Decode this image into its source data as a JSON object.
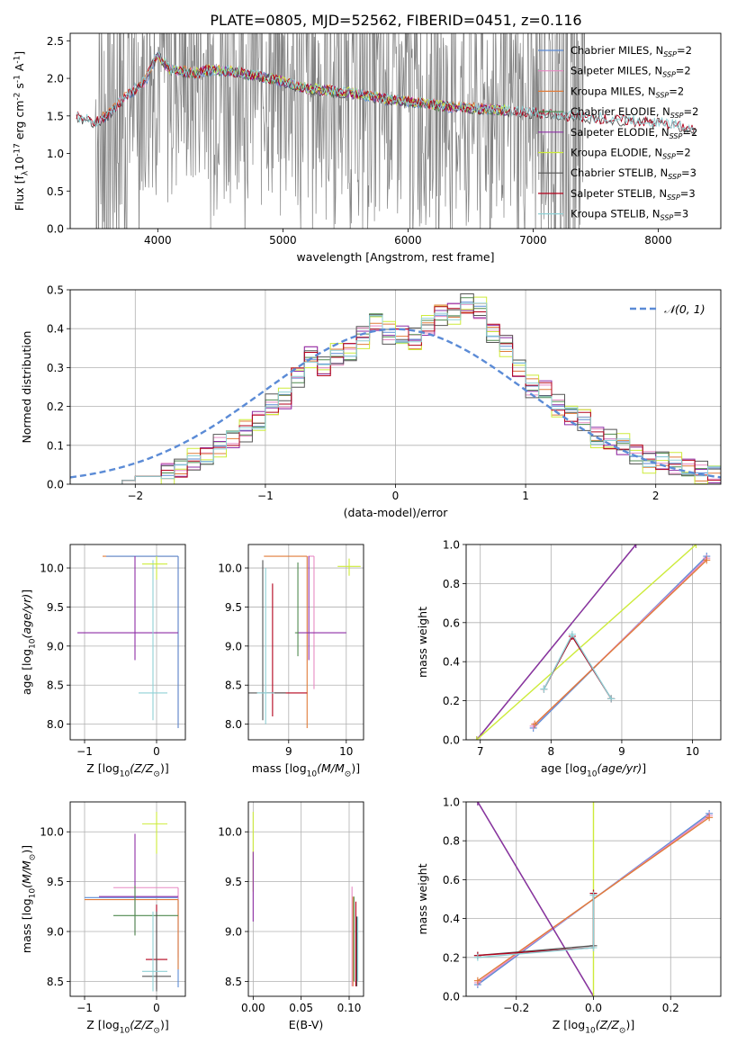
{
  "title": "PLATE=0805, MJD=52562, FIBERID=0451, z=0.116",
  "colors": {
    "Chabrier MILES": "#5b8bd6",
    "Salpeter MILES": "#e78ac3",
    "Kroupa MILES": "#e07b39",
    "Chabrier ELODIE": "#4f8a4f",
    "Salpeter ELODIE": "#8e2ea6",
    "Kroupa ELODIE": "#cdeb3a",
    "Chabrier STELIB": "#555555",
    "Salpeter STELIB": "#b3001b",
    "Kroupa STELIB": "#8fd1d6",
    "data": "#808080",
    "gauss": "#5b8bd6"
  },
  "chart_data": [
    {
      "type": "line",
      "id": "spectrum",
      "xlabel": "wavelength [Angstrom, rest frame]",
      "ylabel": "Flux [f$_\\lambda$$10^{-17}$ erg cm$^{-2}$ s$^{-1}$ A$^{-1}$]",
      "xlim": [
        3300,
        8500
      ],
      "ylim": [
        0,
        2.6
      ],
      "xticks": [
        4000,
        5000,
        6000,
        7000,
        8000
      ],
      "yticks": [
        0.0,
        0.5,
        1.0,
        1.5,
        2.0,
        2.5
      ],
      "xtick_labels": [
        "4000",
        "5000",
        "6000",
        "7000",
        "8000"
      ],
      "ytick_labels": [
        "0.0",
        "0.5",
        "1.0",
        "1.5",
        "2.0",
        "2.5"
      ],
      "legend_position": "upper-right",
      "legend": [
        {
          "name": "Chabrier MILES",
          "nssp": "2"
        },
        {
          "name": "Salpeter MILES",
          "nssp": "2"
        },
        {
          "name": "Kroupa MILES",
          "nssp": "2"
        },
        {
          "name": "Chabrier ELODIE",
          "nssp": "2"
        },
        {
          "name": "Salpeter ELODIE",
          "nssp": "2"
        },
        {
          "name": "Kroupa ELODIE",
          "nssp": "2"
        },
        {
          "name": "Chabrier STELIB",
          "nssp": "3"
        },
        {
          "name": "Salpeter STELIB",
          "nssp": "3"
        },
        {
          "name": "Kroupa STELIB",
          "nssp": "3"
        }
      ],
      "data_range": [
        3500,
        7420
      ],
      "model_curve": {
        "x": [
          3350,
          3500,
          3600,
          3700,
          3800,
          3900,
          3950,
          4000,
          4100,
          4200,
          4300,
          4400,
          4600,
          4800,
          5000,
          5200,
          5400,
          5600,
          5800,
          6000,
          6200,
          6400,
          6600,
          6800,
          7000,
          7200,
          7400,
          7600,
          7800,
          8000,
          8200,
          8300
        ],
        "y": [
          1.48,
          1.4,
          1.5,
          1.68,
          1.82,
          1.95,
          2.15,
          2.3,
          2.1,
          2.08,
          2.05,
          2.1,
          2.08,
          2.02,
          1.95,
          1.85,
          1.82,
          1.78,
          1.72,
          1.68,
          1.64,
          1.6,
          1.58,
          1.56,
          1.53,
          1.5,
          1.47,
          1.45,
          1.42,
          1.4,
          1.35,
          1.3
        ]
      },
      "series_ranges": [
        {
          "name": "Chabrier MILES",
          "xmin": 3540,
          "xmax": 6750
        },
        {
          "name": "Salpeter MILES",
          "xmin": 3540,
          "xmax": 6750
        },
        {
          "name": "Kroupa MILES",
          "xmin": 3540,
          "xmax": 6750
        },
        {
          "name": "Chabrier ELODIE",
          "xmin": 4000,
          "xmax": 6800
        },
        {
          "name": "Salpeter ELODIE",
          "xmin": 4000,
          "xmax": 6800
        },
        {
          "name": "Kroupa ELODIE",
          "xmin": 4000,
          "xmax": 6800
        },
        {
          "name": "Chabrier STELIB",
          "xmin": 3350,
          "xmax": 8300
        },
        {
          "name": "Salpeter STELIB",
          "xmin": 3350,
          "xmax": 8300
        },
        {
          "name": "Kroupa STELIB",
          "xmin": 3350,
          "xmax": 8300
        }
      ]
    },
    {
      "type": "line",
      "id": "residuals",
      "xlabel": "(data-model)/error",
      "ylabel": "Normed distribution",
      "xlim": [
        -2.5,
        2.5
      ],
      "ylim": [
        0,
        0.5
      ],
      "xticks": [
        -2,
        -1,
        0,
        1,
        2
      ],
      "yticks": [
        0.0,
        0.1,
        0.2,
        0.3,
        0.4,
        0.5
      ],
      "xtick_labels": [
        "−2",
        "−1",
        "0",
        "1",
        "2"
      ],
      "ytick_labels": [
        "0.0",
        "0.1",
        "0.2",
        "0.3",
        "0.4",
        "0.5"
      ],
      "legend_position": "upper-right",
      "gauss_label": "𝒩(0, 1)",
      "bin_width": 0.1,
      "bin_start": -2.5,
      "hist": [
        0.0,
        0.0,
        0.0,
        0.0,
        0.01,
        0.02,
        0.02,
        0.03,
        0.04,
        0.06,
        0.07,
        0.1,
        0.12,
        0.14,
        0.16,
        0.2,
        0.22,
        0.28,
        0.33,
        0.3,
        0.33,
        0.34,
        0.38,
        0.42,
        0.39,
        0.38,
        0.37,
        0.41,
        0.44,
        0.44,
        0.46,
        0.45,
        0.39,
        0.36,
        0.3,
        0.25,
        0.24,
        0.2,
        0.18,
        0.17,
        0.12,
        0.11,
        0.1,
        0.08,
        0.06,
        0.06,
        0.05,
        0.04,
        0.03,
        0.03
      ],
      "hist_offsets": [
        0.0,
        0.012,
        -0.01,
        0.008,
        -0.015,
        0.02,
        -0.02,
        0.01,
        0.005
      ]
    },
    {
      "type": "scatter",
      "id": "age-vs-Z",
      "xlabel": "Z [log$_{10}$$(Z/Z_\\odot)$]",
      "ylabel": "age  [log$_{10}$$(age/yr)$]",
      "xlim": [
        -1.2,
        0.4
      ],
      "ylim": [
        7.8,
        10.3
      ],
      "xticks": [
        -1,
        0
      ],
      "yticks": [
        8.0,
        8.5,
        9.0,
        9.5,
        10.0
      ],
      "xtick_labels": [
        "−1",
        "0"
      ],
      "ytick_labels": [
        "8.0",
        "8.5",
        "9.0",
        "9.5",
        "10.0"
      ],
      "points": [
        {
          "s": "Kroupa MILES",
          "x": 0.3,
          "y": 10.15,
          "xl": 1.05,
          "xh": 0.0,
          "yl": 2.2,
          "yh": 0.0
        },
        {
          "s": "Chabrier MILES",
          "x": 0.3,
          "y": 10.15,
          "xl": 1.0,
          "xh": 0.0,
          "yl": 2.2,
          "yh": 0.0
        },
        {
          "s": "Salpeter ELODIE",
          "x": -0.3,
          "y": 9.17,
          "xl": 0.8,
          "xh": 0.6,
          "yl": 0.35,
          "yh": 0.98
        },
        {
          "s": "Kroupa STELIB",
          "x": -0.05,
          "y": 8.4,
          "xl": 0.2,
          "xh": 0.2,
          "yl": 0.35,
          "yh": 1.7
        },
        {
          "s": "Kroupa ELODIE",
          "x": 0.0,
          "y": 10.05,
          "xl": 0.2,
          "xh": 0.15,
          "yl": 0.2,
          "yh": 0.1
        }
      ]
    },
    {
      "type": "scatter",
      "id": "age-vs-mass",
      "xlabel": "mass [log$_{10}$$(M/M_\\odot)$]",
      "ylabel": "",
      "xlim": [
        8.3,
        10.3
      ],
      "ylim": [
        7.8,
        10.3
      ],
      "xticks": [
        9,
        10
      ],
      "yticks": [
        8.0,
        8.5,
        9.0,
        9.5,
        10.0
      ],
      "xtick_labels": [
        "9",
        "10"
      ],
      "ytick_labels": [
        "8.0",
        "8.5",
        "9.0",
        "9.5",
        "10.0"
      ],
      "points": [
        {
          "s": "Kroupa MILES",
          "x": 9.32,
          "y": 10.15,
          "xl": 0.75,
          "xh": 0.0,
          "yl": 2.2,
          "yh": 0.0
        },
        {
          "s": "Salpeter MILES",
          "x": 9.44,
          "y": 10.15,
          "xl": 0.1,
          "xh": 0.0,
          "yl": 1.7,
          "yh": 0.0
        },
        {
          "s": "Salpeter ELODIE",
          "x": 9.35,
          "y": 9.17,
          "xl": 0.2,
          "xh": 0.65,
          "yl": 0.35,
          "yh": 0.98
        },
        {
          "s": "Chabrier ELODIE",
          "x": 9.16,
          "y": 9.17,
          "xl": 0.05,
          "xh": 0.0,
          "yl": 0.3,
          "yh": 0.9
        },
        {
          "s": "Salpeter STELIB",
          "x": 8.72,
          "y": 8.4,
          "xl": 0.1,
          "xh": 0.6,
          "yl": 0.3,
          "yh": 1.4
        },
        {
          "s": "Chabrier STELIB",
          "x": 8.55,
          "y": 8.4,
          "xl": 0.3,
          "xh": 0.4,
          "yl": 0.35,
          "yh": 1.7
        },
        {
          "s": "Kroupa STELIB",
          "x": 8.6,
          "y": 8.4,
          "xl": 0.15,
          "xh": 0.15,
          "yl": 0.4,
          "yh": 1.6
        },
        {
          "s": "Kroupa ELODIE",
          "x": 10.05,
          "y": 10.02,
          "xl": 0.2,
          "xh": 0.2,
          "yl": 0.12,
          "yh": 0.1
        }
      ]
    },
    {
      "type": "line",
      "id": "weight-vs-age",
      "xlabel": "age  [log$_{10}$$(age/yr)$]",
      "ylabel": "mass weight",
      "xlim": [
        6.8,
        10.4
      ],
      "ylim": [
        0,
        1.0
      ],
      "xticks": [
        7,
        8,
        9,
        10
      ],
      "yticks": [
        0.0,
        0.2,
        0.4,
        0.6,
        0.8,
        1.0
      ],
      "xtick_labels": [
        "7",
        "8",
        "9",
        "10"
      ],
      "ytick_labels": [
        "0.0",
        "0.2",
        "0.4",
        "0.6",
        "0.8",
        "1.0"
      ],
      "series": [
        {
          "name": "Chabrier MILES",
          "x": [
            7.75,
            10.2
          ],
          "y": [
            0.06,
            0.94
          ]
        },
        {
          "name": "Salpeter MILES",
          "x": [
            7.75,
            10.2
          ],
          "y": [
            0.07,
            0.93
          ]
        },
        {
          "name": "Kroupa MILES",
          "x": [
            7.77,
            10.2
          ],
          "y": [
            0.08,
            0.92
          ]
        },
        {
          "name": "Chabrier ELODIE",
          "x": [
            6.95,
            9.2
          ],
          "y": [
            0.0,
            1.0
          ]
        },
        {
          "name": "Salpeter ELODIE",
          "x": [
            6.95,
            9.2
          ],
          "y": [
            0.0,
            1.0
          ]
        },
        {
          "name": "Kroupa ELODIE",
          "x": [
            6.95,
            10.05
          ],
          "y": [
            0.0,
            1.0
          ]
        },
        {
          "name": "Chabrier STELIB",
          "x": [
            7.9,
            8.3,
            8.85
          ],
          "y": [
            0.26,
            0.53,
            0.21
          ]
        },
        {
          "name": "Salpeter STELIB",
          "x": [
            7.9,
            8.3,
            8.85
          ],
          "y": [
            0.26,
            0.53,
            0.21
          ]
        },
        {
          "name": "Kroupa STELIB",
          "x": [
            7.9,
            8.3,
            8.85
          ],
          "y": [
            0.26,
            0.54,
            0.21
          ]
        }
      ]
    },
    {
      "type": "scatter",
      "id": "mass-vs-Z",
      "xlabel": "Z [log$_{10}$$(Z/Z_\\odot)$]",
      "ylabel": "mass [log$_{10}$$(M/M_\\odot)$]",
      "xlim": [
        -1.2,
        0.4
      ],
      "ylim": [
        8.35,
        10.3
      ],
      "xticks": [
        -1,
        0
      ],
      "yticks": [
        8.5,
        9.0,
        9.5,
        10.0
      ],
      "xtick_labels": [
        "−1",
        "0"
      ],
      "ytick_labels": [
        "8.5",
        "9.0",
        "9.5",
        "10.0"
      ],
      "points": [
        {
          "s": "Chabrier MILES",
          "x": 0.3,
          "y": 9.34,
          "xl": 1.3,
          "xh": 0.0,
          "yl": 0.9,
          "yh": 0.0
        },
        {
          "s": "Salpeter MILES",
          "x": 0.3,
          "y": 9.44,
          "xl": 0.9,
          "xh": 0.0,
          "yl": 0.7,
          "yh": 0.0
        },
        {
          "s": "Kroupa MILES",
          "x": 0.3,
          "y": 9.32,
          "xl": 1.3,
          "xh": 0.0,
          "yl": 0.7,
          "yh": 0.0
        },
        {
          "s": "Salpeter ELODIE",
          "x": -0.3,
          "y": 9.35,
          "xl": 0.5,
          "xh": 0.6,
          "yl": 0.38,
          "yh": 0.63
        },
        {
          "s": "Chabrier ELODIE",
          "x": -0.3,
          "y": 9.16,
          "xl": 0.3,
          "xh": 0.6,
          "yl": 0.2,
          "yh": 0.3
        },
        {
          "s": "Salpeter STELIB",
          "x": 0.0,
          "y": 8.72,
          "xl": 0.15,
          "xh": 0.15,
          "yl": 0.3,
          "yh": 0.55
        },
        {
          "s": "Chabrier STELIB",
          "x": 0.0,
          "y": 8.55,
          "xl": 0.2,
          "xh": 0.2,
          "yl": 0.15,
          "yh": 0.65
        },
        {
          "s": "Kroupa STELIB",
          "x": -0.05,
          "y": 8.6,
          "xl": 0.15,
          "xh": 0.2,
          "yl": 0.2,
          "yh": 0.6
        },
        {
          "s": "Kroupa ELODIE",
          "x": 0.0,
          "y": 10.08,
          "xl": 0.2,
          "xh": 0.15,
          "yl": 0.3,
          "yh": 0.12
        }
      ]
    },
    {
      "type": "scatter",
      "id": "mass-vs-EBV",
      "xlabel": "E(B-V)",
      "ylabel": "",
      "xlim": [
        -0.005,
        0.115
      ],
      "ylim": [
        8.35,
        10.3
      ],
      "xticks": [
        0.0,
        0.05,
        0.1
      ],
      "yticks": [
        8.5,
        9.0,
        9.5,
        10.0
      ],
      "xtick_labels": [
        "0.00",
        "0.05",
        "0.10"
      ],
      "ytick_labels": [
        "8.5",
        "9.0",
        "9.5",
        "10.0"
      ],
      "points": [
        {
          "s": "Kroupa ELODIE",
          "x": 0.0,
          "y": 9.9,
          "yl": 0.5,
          "yh": 0.3
        },
        {
          "s": "Salpeter ELODIE",
          "x": 0.0,
          "y": 9.6,
          "yl": 0.5,
          "yh": 0.2
        },
        {
          "s": "Salpeter MILES",
          "x": 0.103,
          "y": 8.95,
          "yl": 0.5,
          "yh": 0.5
        },
        {
          "s": "Kroupa MILES",
          "x": 0.104,
          "y": 8.9,
          "yl": 0.45,
          "yh": 0.45
        },
        {
          "s": "Chabrier ELODIE",
          "x": 0.105,
          "y": 8.95,
          "yl": 0.45,
          "yh": 0.4
        },
        {
          "s": "Salpeter STELIB",
          "x": 0.107,
          "y": 8.9,
          "yl": 0.45,
          "yh": 0.4
        },
        {
          "s": "Chabrier STELIB",
          "x": 0.108,
          "y": 8.8,
          "yl": 0.35,
          "yh": 0.35
        },
        {
          "s": "Kroupa STELIB",
          "x": 0.109,
          "y": 8.8,
          "yl": 0.3,
          "yh": 0.35
        }
      ]
    },
    {
      "type": "line",
      "id": "weight-vs-Z",
      "xlabel": "Z [log$_{10}$$(Z/Z_\\odot)$]",
      "ylabel": "mass weight",
      "xlim": [
        -0.33,
        0.33
      ],
      "ylim": [
        0,
        1.0
      ],
      "xticks": [
        -0.2,
        0.0,
        0.2
      ],
      "yticks": [
        0.0,
        0.2,
        0.4,
        0.6,
        0.8,
        1.0
      ],
      "xtick_labels": [
        "−0.2",
        "0.0",
        "0.2"
      ],
      "ytick_labels": [
        "0.0",
        "0.2",
        "0.4",
        "0.6",
        "0.8",
        "1.0"
      ],
      "series": [
        {
          "name": "Chabrier MILES",
          "x": [
            -0.3,
            0.3
          ],
          "y": [
            0.06,
            0.94
          ]
        },
        {
          "name": "Salpeter MILES",
          "x": [
            -0.3,
            0.3
          ],
          "y": [
            0.07,
            0.93
          ]
        },
        {
          "name": "Kroupa MILES",
          "x": [
            -0.3,
            0.3
          ],
          "y": [
            0.08,
            0.92
          ]
        },
        {
          "name": "Chabrier ELODIE",
          "x": [
            -0.3,
            0.0
          ],
          "y": [
            1.0,
            0.0
          ]
        },
        {
          "name": "Salpeter ELODIE",
          "x": [
            -0.3,
            0.0
          ],
          "y": [
            1.0,
            0.0
          ]
        },
        {
          "name": "Kroupa ELODIE",
          "x": [
            0.0,
            0.0
          ],
          "y": [
            0.0,
            1.0
          ]
        },
        {
          "name": "Chabrier STELIB",
          "x": [
            -0.3,
            0.0,
            0.0
          ],
          "y": [
            0.21,
            0.26,
            0.53
          ]
        },
        {
          "name": "Salpeter STELIB",
          "x": [
            -0.3,
            0.0,
            0.0
          ],
          "y": [
            0.21,
            0.25,
            0.53
          ]
        },
        {
          "name": "Kroupa STELIB",
          "x": [
            -0.3,
            0.0,
            0.0
          ],
          "y": [
            0.2,
            0.25,
            0.52
          ]
        }
      ]
    }
  ]
}
